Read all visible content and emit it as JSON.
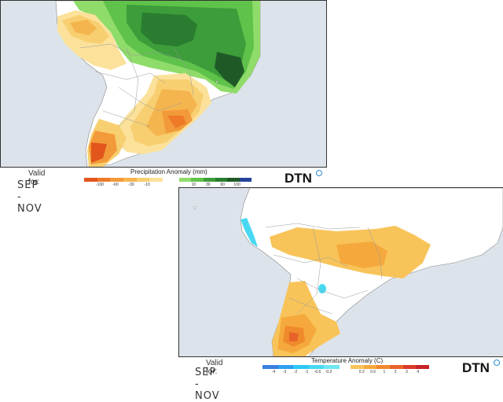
{
  "precip": {
    "valid_for": "Valid for:",
    "dates": "SEP - NOV",
    "legend_title": "Precipitation Anomaly (mm)",
    "dry_colors": [
      "#e2561c",
      "#ee7a27",
      "#f29a3a",
      "#f5b54e",
      "#f8cf70",
      "#fbe19a"
    ],
    "dry_ticks": [
      "-100",
      "-60",
      "-30",
      "-10"
    ],
    "wet_colors": [
      "#8fdc6a",
      "#5fc24a",
      "#3d9d3a",
      "#2a7d30",
      "#1f5a26",
      "#23449a"
    ],
    "wet_ticks": [
      "10",
      "30",
      "60",
      "100"
    ],
    "logo": "DTN"
  },
  "temp": {
    "valid_for": "Valid for:",
    "dates": "SEP - NOV",
    "legend_title": "Temperature Anomaly (C)",
    "cold_colors": [
      "#3a7fe0",
      "#2fa0f0",
      "#2ec6f5",
      "#48d8f2",
      "#6ee6f4"
    ],
    "cold_ticks": [
      "-4",
      "-3",
      "-2",
      "-1",
      "-0.6",
      "-0.2"
    ],
    "warm_colors": [
      "#f8c45a",
      "#f5a93c",
      "#f08a2c",
      "#e8632a",
      "#dd3a2a",
      "#c82226"
    ],
    "warm_ticks": [
      "0.2",
      "0.6",
      "1",
      "2",
      "3",
      "4"
    ],
    "logo": "DTN"
  }
}
